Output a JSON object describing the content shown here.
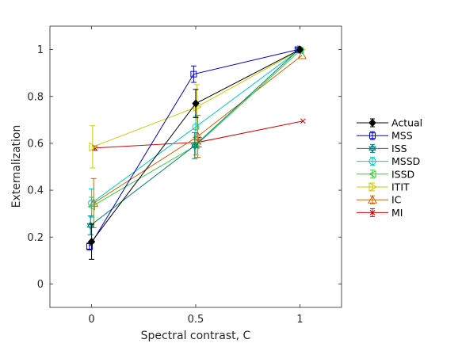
{
  "chart_data": {
    "type": "line",
    "xlabel": "Spectral contrast, C",
    "ylabel": "Externalization",
    "xlim": [
      -0.2,
      1.2
    ],
    "ylim": [
      -0.1,
      1.1
    ],
    "x_ticks": [
      "0",
      "0.5",
      "1"
    ],
    "y_ticks": [
      "0",
      "0.2",
      "0.4",
      "0.6",
      "0.8",
      "1"
    ],
    "legend_position": "right",
    "grid": false,
    "series": [
      {
        "name": "Actual",
        "color": "#000000",
        "marker": "diamond",
        "filled": true,
        "x": [
          0,
          0.5,
          1
        ],
        "y": [
          0.18,
          0.77,
          1.0
        ],
        "err": [
          0.075,
          0.06,
          0.0
        ]
      },
      {
        "name": "MSS",
        "color": "#0000cc",
        "marker": "square",
        "x": [
          -0.01,
          0.49,
          0.99
        ],
        "y": [
          0.16,
          0.895,
          1.0
        ],
        "err": [
          0.015,
          0.035,
          0.0
        ]
      },
      {
        "name": "ISS",
        "color": "#008080",
        "marker": "hexagram",
        "x": [
          -0.005,
          0.495,
          0.995
        ],
        "y": [
          0.25,
          0.59,
          1.0
        ],
        "err": [
          0.04,
          0.055,
          0.0
        ]
      },
      {
        "name": "MSSD",
        "color": "#00cccc",
        "marker": "circle",
        "x": [
          0.0,
          0.5,
          1.0
        ],
        "y": [
          0.345,
          0.67,
          1.0
        ],
        "err": [
          0.06,
          0.045,
          0.0
        ]
      },
      {
        "name": "ISSD",
        "color": "#33cc33",
        "marker": "triangle-left",
        "x": [
          0.0,
          0.5,
          1.0
        ],
        "y": [
          0.33,
          0.59,
          0.995
        ],
        "err": [
          0.04,
          0.04,
          0.0
        ]
      },
      {
        "name": "ITIT",
        "color": "#cccc00",
        "marker": "triangle-right",
        "x": [
          0.005,
          0.505,
          1.005
        ],
        "y": [
          0.585,
          0.755,
          1.0
        ],
        "err": [
          0.09,
          0.095,
          0.0
        ]
      },
      {
        "name": "IC",
        "color": "#cc6600",
        "marker": "triangle-up",
        "x": [
          0.01,
          0.51,
          1.01
        ],
        "y": [
          0.345,
          0.63,
          0.975
        ],
        "err": [
          0.105,
          0.09,
          0.0
        ]
      },
      {
        "name": "MI",
        "color": "#cc0000",
        "marker": "x",
        "x": [
          0.015,
          0.515,
          1.015
        ],
        "y": [
          0.58,
          0.605,
          0.695
        ],
        "err": [
          0.01,
          0.02,
          0.0
        ]
      }
    ]
  }
}
